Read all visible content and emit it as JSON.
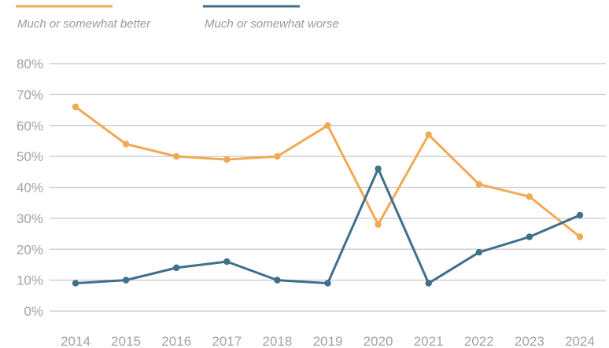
{
  "chart_data": {
    "type": "line",
    "x": [
      "2014",
      "2015",
      "2016",
      "2017",
      "2018",
      "2019",
      "2020",
      "2021",
      "2022",
      "2023",
      "2024"
    ],
    "series": [
      {
        "name": "Much or somewhat better",
        "color": "#f0a955",
        "values": [
          66,
          54,
          50,
          49,
          50,
          60,
          28,
          57,
          41,
          37,
          24
        ]
      },
      {
        "name": "Much or somewhat worse",
        "color": "#3f6f8a",
        "values": [
          9,
          10,
          14,
          16,
          10,
          9,
          46,
          9,
          19,
          24,
          31
        ]
      }
    ],
    "yticks": [
      "0%",
      "10%",
      "20%",
      "30%",
      "40%",
      "50%",
      "60%",
      "70%",
      "80%"
    ],
    "ylim": [
      0,
      80
    ],
    "grid": true,
    "legend": "top-left"
  }
}
